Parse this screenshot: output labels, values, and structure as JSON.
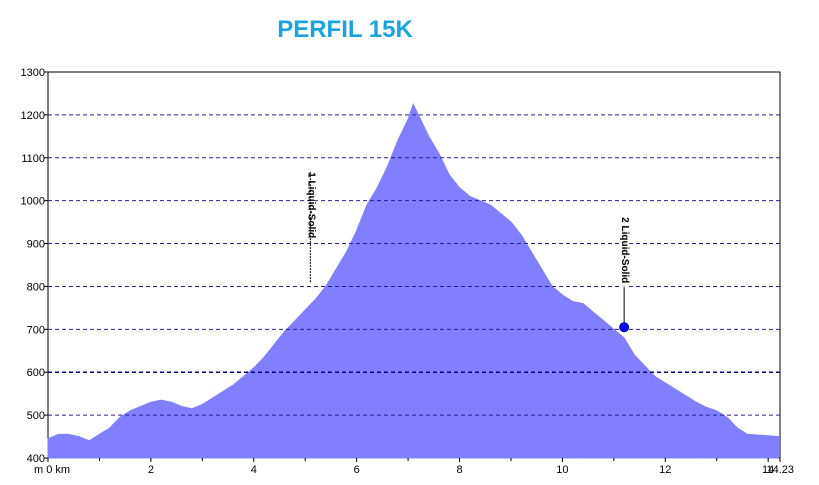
{
  "page": {
    "title": "PERFIL 15K"
  },
  "chart_data": {
    "type": "area",
    "title": "PERFIL 15K",
    "xlabel": "",
    "ylabel": "",
    "xlim": [
      0,
      14.23
    ],
    "ylim": [
      400,
      1300
    ],
    "grid": true,
    "fill_color": "#8080ff",
    "x_tick_labels": [
      "m 0 km",
      "2",
      "4",
      "6",
      "8",
      "10",
      "12",
      "14",
      "14.23"
    ],
    "x_tick_values": [
      0,
      2,
      4,
      6,
      8,
      10,
      12,
      14,
      14.23
    ],
    "y_tick_labels": [
      "400",
      "500",
      "600",
      "700",
      "800",
      "900",
      "1000",
      "1100",
      "1200",
      "1300"
    ],
    "y_tick_values": [
      400,
      500,
      600,
      700,
      800,
      900,
      1000,
      1100,
      1200,
      1300
    ],
    "x": [
      0,
      0.2,
      0.4,
      0.6,
      0.8,
      1.0,
      1.2,
      1.4,
      1.6,
      1.8,
      2.0,
      2.2,
      2.4,
      2.6,
      2.8,
      3.0,
      3.2,
      3.4,
      3.6,
      3.8,
      4.0,
      4.2,
      4.4,
      4.6,
      4.8,
      5.0,
      5.2,
      5.4,
      5.6,
      5.8,
      6.0,
      6.2,
      6.4,
      6.6,
      6.8,
      7.0,
      7.1,
      7.2,
      7.4,
      7.6,
      7.8,
      8.0,
      8.2,
      8.4,
      8.6,
      8.8,
      9.0,
      9.2,
      9.4,
      9.6,
      9.8,
      10.0,
      10.2,
      10.4,
      10.6,
      10.8,
      11.0,
      11.2,
      11.4,
      11.6,
      11.8,
      12.0,
      12.2,
      12.4,
      12.6,
      12.8,
      13.0,
      13.2,
      13.4,
      13.6,
      14.0,
      14.2
    ],
    "y": [
      445,
      455,
      455,
      450,
      440,
      455,
      470,
      495,
      510,
      520,
      530,
      535,
      530,
      520,
      515,
      525,
      540,
      555,
      570,
      590,
      610,
      635,
      665,
      695,
      720,
      745,
      770,
      800,
      840,
      880,
      930,
      990,
      1030,
      1080,
      1140,
      1190,
      1225,
      1200,
      1150,
      1110,
      1060,
      1030,
      1010,
      1000,
      990,
      970,
      950,
      920,
      880,
      840,
      800,
      780,
      765,
      760,
      740,
      720,
      700,
      680,
      640,
      615,
      590,
      575,
      560,
      545,
      530,
      518,
      510,
      495,
      470,
      455,
      452,
      450
    ],
    "annotations": [
      {
        "label": "1 Liquid-Solid",
        "x": 5.1,
        "y": 810,
        "marker": false
      },
      {
        "label": "2 Liquid-Solid",
        "x": 11.2,
        "y": 705,
        "marker": true
      }
    ]
  }
}
